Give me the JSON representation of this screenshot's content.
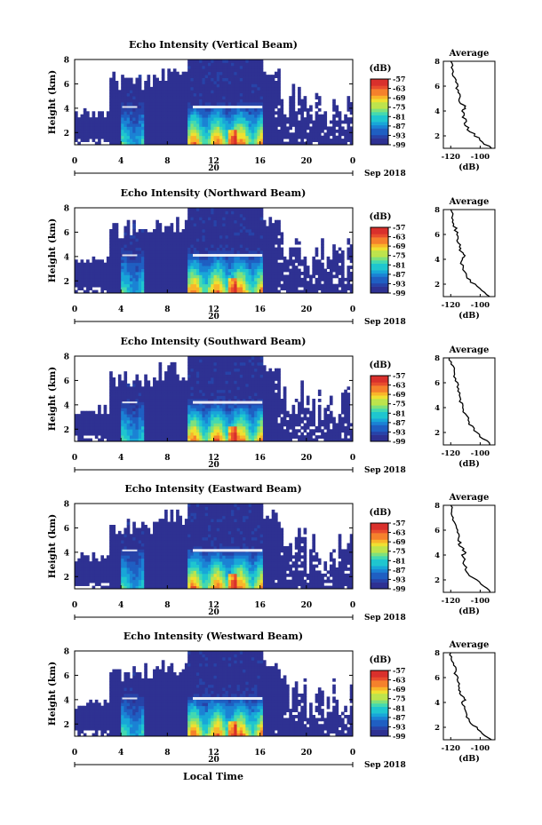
{
  "x_axis_label": "Local Time",
  "date_label": "Sep 2018",
  "day_label": "20",
  "colorbar_unit": "(dB)",
  "colors": {
    "background_missing": "#ffffff",
    "lowest_level": "#2e3192",
    "inversion_band": "#ffffff"
  },
  "chart_data": [
    {
      "type": "heatmap",
      "title": "Echo Intensity (Vertical Beam)",
      "ylabel": "Height (km)",
      "xlim": [
        0,
        24
      ],
      "ylim": [
        1,
        8
      ],
      "xticks": [
        "0",
        "4",
        "8",
        "12",
        "16",
        "20",
        "0"
      ],
      "yticks": [
        "2",
        "4",
        "6",
        "8"
      ],
      "colorbar": {
        "unit": "(dB)",
        "ticks": [
          "-57",
          "-63",
          "-69",
          "-75",
          "-81",
          "-87",
          "-93",
          "-99"
        ]
      },
      "profile": {
        "title": "Average",
        "xlabel": "(dB)",
        "xticks": [
          "-120",
          "-100"
        ],
        "xlim": [
          -125,
          -90
        ],
        "yticks": [
          "2",
          "4",
          "6",
          "8"
        ],
        "heights": [
          1.0,
          1.5,
          2.0,
          2.5,
          3.0,
          3.5,
          4.0,
          4.3,
          4.6,
          5.0,
          5.5,
          6.0,
          6.5,
          7.0,
          7.5,
          8.0
        ],
        "values": [
          -93,
          -98,
          -103,
          -108,
          -110,
          -111,
          -112,
          -110,
          -113,
          -114,
          -115,
          -116,
          -117,
          -118,
          -119,
          -120
        ]
      }
    },
    {
      "type": "heatmap",
      "title": "Echo Intensity (Northward Beam)",
      "ylabel": "Height (km)",
      "xlim": [
        0,
        24
      ],
      "ylim": [
        1,
        8
      ],
      "xticks": [
        "0",
        "4",
        "8",
        "12",
        "16",
        "20",
        "0"
      ],
      "yticks": [
        "2",
        "4",
        "6",
        "8"
      ],
      "colorbar": {
        "unit": "(dB)",
        "ticks": [
          "-57",
          "-63",
          "-69",
          "-75",
          "-81",
          "-87",
          "-93",
          "-99"
        ]
      },
      "profile": {
        "title": "Average",
        "xlabel": "(dB)",
        "xticks": [
          "-120",
          "-100"
        ],
        "xlim": [
          -125,
          -90
        ],
        "yticks": [
          "2",
          "4",
          "6",
          "8"
        ],
        "heights": [
          1.0,
          1.5,
          2.0,
          2.5,
          3.0,
          3.5,
          4.0,
          4.3,
          4.6,
          5.0,
          5.5,
          6.0,
          6.5,
          7.0,
          7.5,
          8.0
        ],
        "values": [
          -94,
          -99,
          -104,
          -109,
          -111,
          -112,
          -113,
          -110,
          -113,
          -114,
          -115,
          -116,
          -117,
          -118,
          -119,
          -120
        ]
      }
    },
    {
      "type": "heatmap",
      "title": "Echo Intensity (Southward Beam)",
      "ylabel": "Height (km)",
      "xlim": [
        0,
        24
      ],
      "ylim": [
        1,
        8
      ],
      "xticks": [
        "0",
        "4",
        "8",
        "12",
        "16",
        "20",
        "0"
      ],
      "yticks": [
        "2",
        "4",
        "6",
        "8"
      ],
      "colorbar": {
        "unit": "(dB)",
        "ticks": [
          "-57",
          "-63",
          "-69",
          "-75",
          "-81",
          "-87",
          "-93",
          "-99"
        ]
      },
      "profile": {
        "title": "Average",
        "xlabel": "(dB)",
        "xticks": [
          "-120",
          "-100"
        ],
        "xlim": [
          -125,
          -90
        ],
        "yticks": [
          "2",
          "4",
          "6",
          "8"
        ],
        "heights": [
          1.0,
          1.5,
          2.0,
          2.5,
          3.0,
          3.5,
          4.0,
          4.5,
          5.0,
          5.5,
          6.0,
          6.5,
          7.0,
          7.5,
          8.0
        ],
        "values": [
          -93,
          -98,
          -102,
          -106,
          -108,
          -110,
          -112,
          -113,
          -114,
          -115,
          -116,
          -117,
          -118,
          -119,
          -121
        ]
      }
    },
    {
      "type": "heatmap",
      "title": "Echo Intensity (Eastward Beam)",
      "ylabel": "Height (km)",
      "xlim": [
        0,
        24
      ],
      "ylim": [
        1,
        8
      ],
      "xticks": [
        "0",
        "4",
        "8",
        "12",
        "16",
        "20",
        "0"
      ],
      "yticks": [
        "2",
        "4",
        "6",
        "8"
      ],
      "colorbar": {
        "unit": "(dB)",
        "ticks": [
          "-57",
          "-63",
          "-69",
          "-75",
          "-81",
          "-87",
          "-93",
          "-99"
        ]
      },
      "profile": {
        "title": "Average",
        "xlabel": "(dB)",
        "xticks": [
          "-120",
          "-100"
        ],
        "xlim": [
          -125,
          -90
        ],
        "yticks": [
          "2",
          "4",
          "6",
          "8"
        ],
        "heights": [
          1.0,
          1.5,
          2.0,
          2.5,
          3.0,
          3.5,
          4.0,
          4.3,
          4.6,
          5.0,
          5.5,
          6.0,
          6.5,
          7.0,
          7.5,
          8.0
        ],
        "values": [
          -93,
          -98,
          -103,
          -108,
          -110,
          -111,
          -112,
          -110,
          -113,
          -114,
          -115,
          -116,
          -117,
          -118,
          -119,
          -120
        ]
      }
    },
    {
      "type": "heatmap",
      "title": "Echo Intensity (Westward Beam)",
      "ylabel": "Height (km)",
      "xlim": [
        0,
        24
      ],
      "ylim": [
        1,
        8
      ],
      "xticks": [
        "0",
        "4",
        "8",
        "12",
        "16",
        "20",
        "0"
      ],
      "yticks": [
        "2",
        "4",
        "6",
        "8"
      ],
      "colorbar": {
        "unit": "(dB)",
        "ticks": [
          "-57",
          "-63",
          "-69",
          "-75",
          "-81",
          "-87",
          "-93",
          "-99"
        ]
      },
      "profile": {
        "title": "Average",
        "xlabel": "(dB)",
        "xticks": [
          "-120",
          "-100"
        ],
        "xlim": [
          -125,
          -90
        ],
        "yticks": [
          "2",
          "4",
          "6",
          "8"
        ],
        "heights": [
          1.0,
          1.5,
          2.0,
          2.5,
          3.0,
          3.5,
          4.0,
          4.3,
          4.6,
          5.0,
          5.5,
          6.0,
          6.5,
          7.0,
          7.5,
          8.0
        ],
        "values": [
          -93,
          -98,
          -103,
          -108,
          -110,
          -111,
          -112,
          -110,
          -113,
          -114,
          -115,
          -116,
          -117,
          -118,
          -119,
          -120
        ]
      }
    }
  ]
}
